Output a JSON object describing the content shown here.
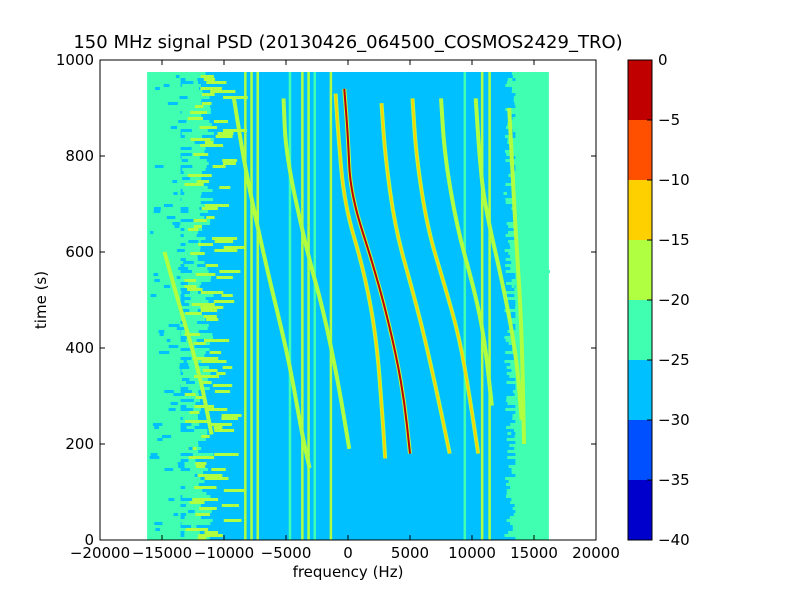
{
  "chart_data": {
    "type": "heatmap",
    "title": "150 MHz signal PSD (20130426_064500_COSMOS2429_TRO)",
    "xlabel": "frequency (Hz)",
    "ylabel": "time (s)",
    "xlim": [
      -20000,
      20000
    ],
    "ylim": [
      0,
      1000
    ],
    "x_ticks": [
      -20000,
      -15000,
      -10000,
      -5000,
      0,
      5000,
      10000,
      15000,
      20000
    ],
    "y_ticks": [
      0,
      200,
      400,
      600,
      800,
      1000
    ],
    "data_extent": {
      "x": [
        -16200,
        16200
      ],
      "y": [
        0,
        975
      ]
    },
    "colormap": "jet",
    "colorbar": {
      "levels": [
        -40,
        -35,
        -30,
        -25,
        -20,
        -15,
        -10,
        -5,
        0
      ],
      "colors": [
        "#0000cc",
        "#0050ff",
        "#00c0ff",
        "#40ffb0",
        "#b0ff40",
        "#ffd000",
        "#ff5000",
        "#c00000"
      ],
      "ticks": [
        0,
        -5,
        -10,
        -15,
        -20,
        -25,
        -30,
        -35,
        -40
      ]
    },
    "background_levels": {
      "outer_band": -25,
      "center": -30,
      "low_freq_edge": -27
    },
    "vertical_lines": [
      {
        "freq": -8300,
        "level": -20
      },
      {
        "freq": -7800,
        "level": -20
      },
      {
        "freq": -7300,
        "level": -20
      },
      {
        "freq": -4700,
        "level": -25
      },
      {
        "freq": -3700,
        "level": -20
      },
      {
        "freq": -3200,
        "level": -20
      },
      {
        "freq": -2700,
        "level": -25
      },
      {
        "freq": -1400,
        "level": -20
      },
      {
        "freq": 9400,
        "level": -25
      },
      {
        "freq": 10800,
        "level": -20
      },
      {
        "freq": 11400,
        "level": -20
      }
    ],
    "doppler_traces": [
      {
        "name": "",
        "level": -20,
        "points": [
          [
            -9200,
            920
          ],
          [
            -8200,
            760
          ],
          [
            -6500,
            560
          ],
          [
            -4800,
            380
          ],
          [
            -3700,
            220
          ],
          [
            -3100,
            150
          ]
        ]
      },
      {
        "name": "",
        "level": -20,
        "points": [
          [
            -5200,
            920
          ],
          [
            -5000,
            800
          ],
          [
            -3300,
            600
          ],
          [
            -2000,
            480
          ],
          [
            -800,
            330
          ],
          [
            100,
            190
          ]
        ]
      },
      {
        "name": "",
        "level": -15,
        "points": [
          [
            -1000,
            930
          ],
          [
            -800,
            850
          ],
          [
            -300,
            700
          ],
          [
            1300,
            560
          ],
          [
            2300,
            420
          ],
          [
            2800,
            250
          ],
          [
            3000,
            170
          ]
        ]
      },
      {
        "name": "",
        "level": -5,
        "points": [
          [
            -300,
            940
          ],
          [
            0,
            840
          ],
          [
            200,
            720
          ],
          [
            2200,
            560
          ],
          [
            3600,
            420
          ],
          [
            4500,
            300
          ],
          [
            5000,
            180
          ]
        ]
      },
      {
        "name": "",
        "level": -15,
        "points": [
          [
            2700,
            910
          ],
          [
            3000,
            800
          ],
          [
            3800,
            650
          ],
          [
            5200,
            520
          ],
          [
            6200,
            420
          ],
          [
            7400,
            280
          ],
          [
            8200,
            180
          ]
        ]
      },
      {
        "name": "",
        "level": -15,
        "points": [
          [
            5200,
            920
          ],
          [
            5500,
            800
          ],
          [
            6400,
            650
          ],
          [
            7800,
            530
          ],
          [
            9000,
            420
          ],
          [
            9800,
            300
          ],
          [
            10500,
            180
          ]
        ]
      },
      {
        "name": "",
        "level": -20,
        "points": [
          [
            7500,
            920
          ],
          [
            7800,
            800
          ],
          [
            8800,
            650
          ],
          [
            10200,
            520
          ],
          [
            11000,
            420
          ],
          [
            11600,
            280
          ]
        ]
      },
      {
        "name": "",
        "level": -20,
        "points": [
          [
            10300,
            920
          ],
          [
            10600,
            800
          ],
          [
            11000,
            700
          ],
          [
            12600,
            520
          ],
          [
            13600,
            380
          ],
          [
            14000,
            250
          ]
        ]
      },
      {
        "name": "",
        "level": -20,
        "points": [
          [
            13000,
            900
          ],
          [
            13500,
            650
          ],
          [
            14000,
            450
          ],
          [
            14200,
            200
          ]
        ]
      },
      {
        "name": "",
        "level": -20,
        "points": [
          [
            -14800,
            600
          ],
          [
            -13500,
            480
          ],
          [
            -12000,
            350
          ],
          [
            -11000,
            220
          ]
        ]
      }
    ],
    "grid": false
  }
}
